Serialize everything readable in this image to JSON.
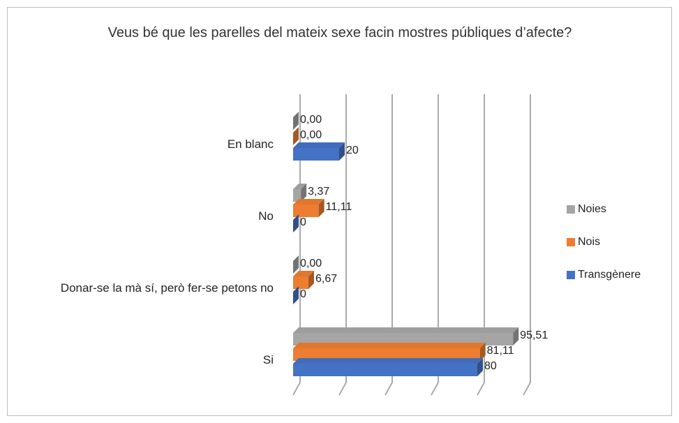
{
  "chart_data": {
    "type": "bar3d_horizontal",
    "title": "Veus bé que les parelles del mateix sexe facin mostres públiques d’afecte?",
    "categories": [
      "En blanc",
      "No",
      "Donar-se la mà sí, però fer-se petons no",
      "Si"
    ],
    "series": [
      {
        "name": "Noies",
        "color": "#a5a5a5",
        "values": [
          0.0,
          3.37,
          0.0,
          95.51
        ],
        "value_labels": [
          "0,00",
          "3,37",
          "0,00",
          "95,51"
        ]
      },
      {
        "name": "Nois",
        "color": "#ed7d31",
        "values": [
          0.0,
          11.11,
          6.67,
          81.11
        ],
        "value_labels": [
          "0,00",
          "11,11",
          "6,67",
          "81,11"
        ]
      },
      {
        "name": "Transgènere",
        "color": "#4472c4",
        "values": [
          20,
          0,
          0,
          80
        ]
      }
    ],
    "xlim": [
      0,
      100
    ],
    "xticks": [
      0,
      20,
      40,
      60,
      80,
      100
    ],
    "grid": true,
    "legend": "right"
  }
}
